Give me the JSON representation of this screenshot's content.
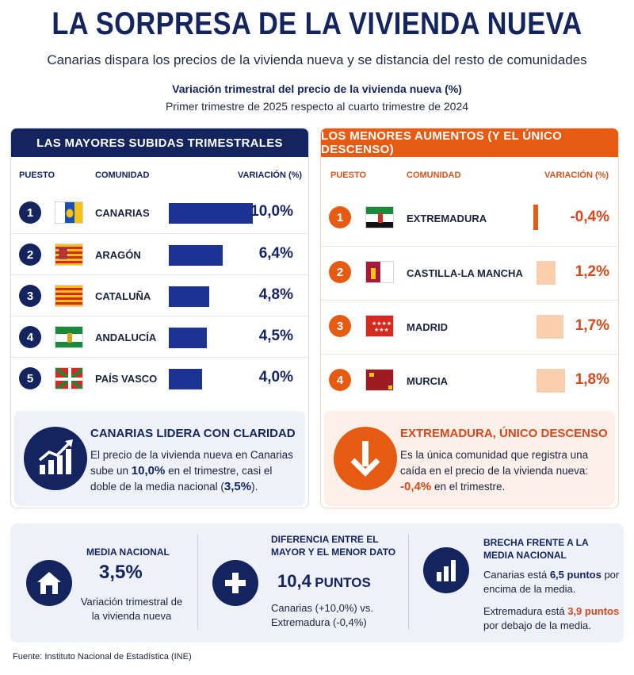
{
  "header": {
    "title": "LA SORPRESA DE LA VIVIENDA NUEVA",
    "subtitle": "Canarias dispara los precios de la vivienda nueva y se distancia del resto de comunidades",
    "chart_title": "Variación trimestral del precio de la vivienda nueva (%)",
    "chart_subtitle": "Primer trimestre de 2025 respecto al cuarto trimestre de 2024"
  },
  "left_panel": {
    "heading": "LAS MAYORES SUBIDAS TRIMESTRALES",
    "col_rank": "PUESTO",
    "col_region": "COMUNIDAD",
    "col_value": "VARIACIÓN (%)",
    "rows": [
      {
        "rank": "1",
        "region": "CANARIAS",
        "value_label": "10,0%",
        "value": 10.0
      },
      {
        "rank": "2",
        "region": "ARAGÓN",
        "value_label": "6,4%",
        "value": 6.4
      },
      {
        "rank": "3",
        "region": "CATALUÑA",
        "value_label": "4,8%",
        "value": 4.8
      },
      {
        "rank": "4",
        "region": "ANDALUCÍA",
        "value_label": "4,5%",
        "value": 4.5
      },
      {
        "rank": "5",
        "region": "PAÍS VASCO",
        "value_label": "4,0%",
        "value": 4.0
      }
    ],
    "callout": {
      "title": "CANARIAS LIDERA CON CLARIDAD",
      "text_1": "El precio de la vivienda nueva en Canarias sube un ",
      "hl_1": "10,0%",
      "text_2": " en el trimestre, casi el doble de la media nacional (",
      "hl_2": "3,5%",
      "text_3": ")."
    }
  },
  "right_panel": {
    "heading": "LOS MENORES AUMENTOS (Y EL ÚNICO DESCENSO)",
    "col_rank": "PUESTO",
    "col_region": "COMUNIDAD",
    "col_value": "VARIACIÓN (%)",
    "rows": [
      {
        "rank": "1",
        "region": "EXTREMADURA",
        "value_label": "-0,4%",
        "value": -0.4
      },
      {
        "rank": "2",
        "region": "CASTILLA-LA MANCHA",
        "value_label": "1,2%",
        "value": 1.2
      },
      {
        "rank": "3",
        "region": "MADRID",
        "value_label": "1,7%",
        "value": 1.7
      },
      {
        "rank": "4",
        "region": "MURCIA",
        "value_label": "1,8%",
        "value": 1.8
      }
    ],
    "callout": {
      "title": "EXTREMADURA, ÚNICO DESCENSO",
      "text_1": "Es la única comunidad que registra una caída en el precio de la vivienda nueva: ",
      "hl_1": "-0,4%",
      "text_2": " en el trimestre."
    }
  },
  "bottom": {
    "media": {
      "label": "MEDIA NACIONAL",
      "value": "3,5%",
      "text": "Variación trimestral de la vivienda nueva"
    },
    "diferencia": {
      "label": "DIFERENCIA ENTRE EL MAYOR Y EL MENOR DATO",
      "value_num": "10,4",
      "value_unit": "PUNTOS",
      "text": "Canarias (+10,0%) vs. Extremadura (-0,4%)"
    },
    "brecha": {
      "label": "BRECHA FRENTE A LA MEDIA NACIONAL",
      "line1_a": "Canarias está ",
      "line1_hl": "6,5 puntos",
      "line1_b": " por encima de la media.",
      "line2_a": "Extremadura está ",
      "line2_hl": "3,9 puntos",
      "line2_b": " por debajo de la media."
    }
  },
  "source": "Fuente: Instituto Nacional de Estadística (INE)",
  "colors": {
    "navy": "#13245f",
    "bar_blue": "#1d3393",
    "orange": "#e65a12",
    "red_text": "#d9461a",
    "peach_bar": "#f9cfae"
  },
  "icons": [
    "rising-chart-icon",
    "down-arrow-icon",
    "house-icon",
    "plus-icon",
    "bar-chart-icon"
  ],
  "chart_data": [
    {
      "type": "bar",
      "title": "LAS MAYORES SUBIDAS TRIMESTRALES",
      "categories": [
        "CANARIAS",
        "ARAGÓN",
        "CATALUÑA",
        "ANDALUCÍA",
        "PAÍS VASCO"
      ],
      "values": [
        10.0,
        6.4,
        4.8,
        4.5,
        4.0
      ]
    },
    {
      "type": "bar",
      "title": "LOS MENORES AUMENTOS (Y EL ÚNICO DESCENSO)",
      "categories": [
        "EXTREMADURA",
        "CASTILLA-LA MANCHA",
        "MADRID",
        "MURCIA"
      ],
      "values": [
        -0.4,
        1.2,
        1.7,
        1.8
      ]
    }
  ]
}
